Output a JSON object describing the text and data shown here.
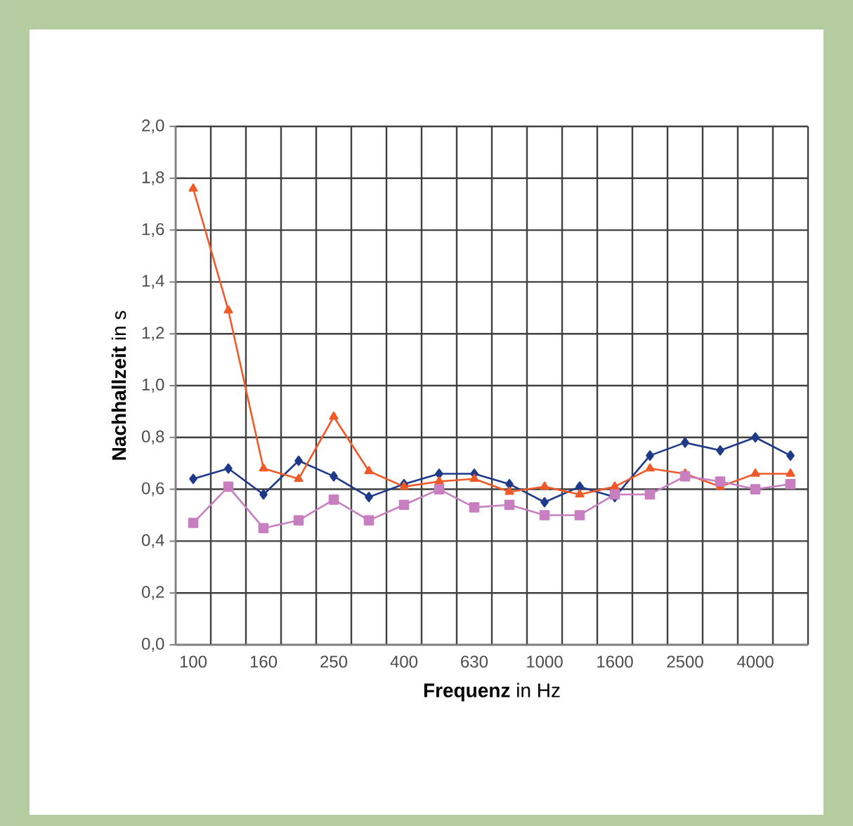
{
  "chart_data": {
    "type": "line",
    "xlabel": "**Frequenz** in Hz",
    "ylabel": "**Nachhallzeit** in s",
    "categories": [
      "100",
      null,
      "160",
      null,
      "250",
      null,
      "400",
      null,
      "630",
      null,
      "1000",
      null,
      "1600",
      null,
      "2500",
      null,
      "4000",
      null
    ],
    "ylim": [
      0,
      2.0
    ],
    "yticks": [
      {
        "value": 0,
        "label": "0,0"
      },
      {
        "value": 0.2,
        "label": "0,2"
      },
      {
        "value": 0.4,
        "label": "0,4"
      },
      {
        "value": 0.6,
        "label": "0,6"
      },
      {
        "value": 0.8,
        "label": "0,8"
      },
      {
        "value": 1.0,
        "label": "1,0"
      },
      {
        "value": 1.2,
        "label": "1,2"
      },
      {
        "value": 1.4,
        "label": "1,4"
      },
      {
        "value": 1.6,
        "label": "1,6"
      },
      {
        "value": 1.8,
        "label": "1,8"
      },
      {
        "value": 2.0,
        "label": "2,0"
      }
    ],
    "grid": true,
    "series": [
      {
        "color": "#1f3a8a",
        "marker": "diamond",
        "values": [
          0.64,
          0.68,
          0.58,
          0.71,
          0.65,
          0.57,
          0.62,
          0.66,
          0.66,
          0.62,
          0.55,
          0.61,
          0.57,
          0.73,
          0.78,
          0.75,
          0.8,
          0.73
        ]
      },
      {
        "color": "#f05a28",
        "marker": "triangle",
        "values": [
          1.76,
          1.29,
          0.68,
          0.64,
          0.88,
          0.67,
          0.61,
          0.63,
          0.64,
          0.59,
          0.61,
          0.58,
          0.61,
          0.68,
          0.66,
          0.61,
          0.66,
          0.66
        ]
      },
      {
        "color": "#c77fc0",
        "marker": "square",
        "values": [
          0.47,
          0.61,
          0.45,
          0.48,
          0.56,
          0.48,
          0.54,
          0.6,
          0.53,
          0.54,
          0.5,
          0.5,
          0.58,
          0.58,
          0.65,
          0.63,
          0.6,
          0.62
        ]
      }
    ]
  }
}
